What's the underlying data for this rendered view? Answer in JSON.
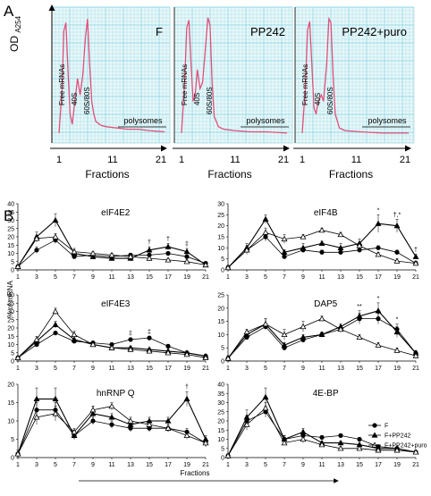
{
  "panel_labels": {
    "a": "A",
    "b": "B"
  },
  "colors": {
    "grid": "#7fd3e6",
    "trace": "#e0507a",
    "paper": "#eaf7f8",
    "ink": "#000000"
  },
  "profiles": {
    "ylabel_main": "OD",
    "ylabel_sub": "A254",
    "xlabel": "Fractions",
    "ticks": [
      "1",
      "11",
      "21"
    ],
    "annotations": [
      "Free mRNAs",
      "40S",
      "60S/80S",
      "polysomes"
    ],
    "panels": [
      {
        "title": "F",
        "trace": [
          [
            1,
            5
          ],
          [
            1.6,
            40
          ],
          [
            1.9,
            85
          ],
          [
            2.3,
            92
          ],
          [
            2.7,
            55
          ],
          [
            3.1,
            20
          ],
          [
            3.5,
            12
          ],
          [
            4,
            30
          ],
          [
            4.5,
            48
          ],
          [
            5,
            35
          ],
          [
            5.5,
            50
          ],
          [
            6,
            80
          ],
          [
            6.4,
            95
          ],
          [
            6.8,
            60
          ],
          [
            7.2,
            30
          ],
          [
            7.6,
            20
          ],
          [
            8,
            14
          ],
          [
            9,
            11
          ],
          [
            10,
            10
          ],
          [
            12,
            9
          ],
          [
            14,
            8
          ],
          [
            16,
            8
          ],
          [
            18,
            7
          ],
          [
            21,
            6
          ]
        ]
      },
      {
        "title": "PP242",
        "trace": [
          [
            1,
            5
          ],
          [
            1.6,
            45
          ],
          [
            2,
            88
          ],
          [
            2.4,
            94
          ],
          [
            2.8,
            60
          ],
          [
            3.2,
            30
          ],
          [
            3.6,
            35
          ],
          [
            4,
            55
          ],
          [
            4.5,
            40
          ],
          [
            5,
            45
          ],
          [
            5.6,
            75
          ],
          [
            6,
            96
          ],
          [
            6.4,
            90
          ],
          [
            6.8,
            45
          ],
          [
            7.2,
            18
          ],
          [
            8,
            10
          ],
          [
            9,
            8
          ],
          [
            11,
            7
          ],
          [
            14,
            6
          ],
          [
            17,
            6
          ],
          [
            21,
            5
          ]
        ]
      },
      {
        "title": "PP242+puro",
        "trace": [
          [
            1,
            5
          ],
          [
            1.6,
            42
          ],
          [
            2,
            86
          ],
          [
            2.4,
            93
          ],
          [
            2.8,
            60
          ],
          [
            3.2,
            25
          ],
          [
            3.6,
            20
          ],
          [
            4,
            30
          ],
          [
            4.6,
            35
          ],
          [
            5,
            30
          ],
          [
            5.6,
            60
          ],
          [
            6,
            95
          ],
          [
            6.4,
            92
          ],
          [
            6.8,
            50
          ],
          [
            7.2,
            20
          ],
          [
            8,
            9
          ],
          [
            9,
            7
          ],
          [
            12,
            6
          ],
          [
            16,
            5
          ],
          [
            21,
            5
          ]
        ]
      }
    ]
  },
  "chart_data": [
    {
      "type": "line",
      "title": "eIF4E2",
      "x": [
        1,
        3,
        5,
        7,
        9,
        11,
        13,
        15,
        17,
        19,
        21
      ],
      "ylim": [
        0,
        40
      ],
      "yticks": [
        0,
        5,
        10,
        15,
        20,
        25,
        30,
        35,
        40
      ],
      "annotations": [
        {
          "x": 15,
          "text": "†"
        },
        {
          "x": 17,
          "text": "†"
        },
        {
          "x": 19,
          "text": "‡"
        }
      ],
      "series": [
        {
          "name": "F",
          "values": [
            2,
            12,
            18,
            8,
            9,
            8,
            9,
            9,
            10,
            8,
            4
          ],
          "errors": [
            1,
            2,
            2,
            1,
            1,
            1,
            1,
            1,
            1,
            1,
            1
          ]
        },
        {
          "name": "F+PP242",
          "values": [
            2,
            20,
            30,
            10,
            8,
            7,
            7,
            12,
            14,
            11,
            3
          ],
          "errors": [
            1,
            3,
            4,
            2,
            1,
            1,
            1,
            2,
            2,
            2,
            1
          ]
        },
        {
          "name": "F+PP242+puro",
          "values": [
            2,
            19,
            20,
            11,
            10,
            9,
            8,
            7,
            6,
            5,
            3
          ],
          "errors": [
            1,
            2,
            2,
            2,
            1,
            1,
            1,
            1,
            1,
            1,
            1
          ]
        }
      ]
    },
    {
      "type": "line",
      "title": "eIF4B",
      "x": [
        1,
        3,
        5,
        7,
        9,
        11,
        13,
        15,
        17,
        19,
        21
      ],
      "ylim": [
        0,
        30
      ],
      "yticks": [
        0,
        5,
        10,
        15,
        20,
        25,
        30
      ],
      "annotations": [
        {
          "x": 17,
          "text": "*"
        },
        {
          "x": 19,
          "text": "†,*"
        },
        {
          "x": 21,
          "text": "†"
        }
      ],
      "series": [
        {
          "name": "F",
          "values": [
            1,
            9,
            15,
            6,
            9,
            8,
            8,
            9,
            10,
            8,
            3
          ],
          "errors": [
            1,
            1,
            2,
            1,
            1,
            1,
            1,
            1,
            1,
            1,
            1
          ]
        },
        {
          "name": "F+PP242",
          "values": [
            1,
            10,
            23,
            8,
            10,
            12,
            10,
            12,
            21,
            20,
            6
          ],
          "errors": [
            1,
            2,
            2,
            1,
            2,
            1,
            2,
            2,
            4,
            3,
            1
          ]
        },
        {
          "name": "F+PP242+puro",
          "values": [
            1,
            9,
            17,
            14,
            15,
            18,
            16,
            11,
            7,
            4,
            3
          ],
          "errors": [
            1,
            2,
            2,
            2,
            1,
            1,
            1,
            1,
            1,
            1,
            1
          ]
        }
      ]
    },
    {
      "type": "line",
      "title": "eIF4E3",
      "x": [
        1,
        3,
        5,
        7,
        9,
        11,
        13,
        15,
        17,
        19,
        21
      ],
      "ylim": [
        0,
        40
      ],
      "yticks": [
        0,
        5,
        10,
        15,
        20,
        25,
        30,
        35,
        40
      ],
      "annotations": [
        {
          "x": 13,
          "text": "‡"
        },
        {
          "x": 15,
          "text": "‡"
        }
      ],
      "series": [
        {
          "name": "F",
          "values": [
            2,
            10,
            17,
            12,
            11,
            10,
            13,
            14,
            9,
            5,
            3
          ],
          "errors": [
            1,
            1,
            1,
            1,
            1,
            1,
            1,
            1,
            1,
            1,
            1
          ]
        },
        {
          "name": "F+PP242",
          "values": [
            2,
            12,
            22,
            13,
            10,
            8,
            8,
            7,
            6,
            5,
            3
          ],
          "errors": [
            1,
            1,
            2,
            1,
            1,
            1,
            1,
            1,
            1,
            1,
            1
          ]
        },
        {
          "name": "F+PP242+puro",
          "values": [
            2,
            13,
            30,
            16,
            10,
            8,
            7,
            6,
            5,
            4,
            2
          ],
          "errors": [
            1,
            2,
            2,
            2,
            1,
            1,
            1,
            1,
            1,
            1,
            1
          ]
        }
      ]
    },
    {
      "type": "line",
      "title": "DAP5",
      "x": [
        1,
        3,
        5,
        7,
        9,
        11,
        13,
        15,
        17,
        19,
        21
      ],
      "ylim": [
        0,
        25
      ],
      "yticks": [
        0,
        5,
        10,
        15,
        20,
        25
      ],
      "annotations": [
        {
          "x": 15,
          "text": "**"
        },
        {
          "x": 17,
          "text": "*"
        },
        {
          "x": 19,
          "text": "*"
        }
      ],
      "series": [
        {
          "name": "F",
          "values": [
            1,
            9,
            13,
            5,
            8,
            10,
            12,
            16,
            16,
            12,
            3
          ],
          "errors": [
            1,
            1,
            1,
            1,
            1,
            1,
            1,
            2,
            2,
            2,
            1
          ]
        },
        {
          "name": "F+PP242",
          "values": [
            1,
            10,
            14,
            6,
            9,
            10,
            13,
            17,
            19,
            11,
            3
          ],
          "errors": [
            1,
            1,
            2,
            1,
            1,
            1,
            1,
            2,
            3,
            2,
            1
          ]
        },
        {
          "name": "F+PP242+puro",
          "values": [
            1,
            11,
            14,
            10,
            13,
            16,
            12,
            9,
            6,
            4,
            2
          ],
          "errors": [
            1,
            1,
            2,
            2,
            2,
            1,
            1,
            1,
            1,
            1,
            1
          ]
        }
      ]
    },
    {
      "type": "line",
      "title": "hnRNP Q",
      "x": [
        1,
        3,
        5,
        7,
        9,
        11,
        13,
        15,
        17,
        19,
        21
      ],
      "ylim": [
        0,
        20
      ],
      "yticks": [
        0,
        5,
        10,
        15,
        20
      ],
      "annotations": [
        {
          "x": 19,
          "text": "†"
        }
      ],
      "series": [
        {
          "name": "F",
          "values": [
            1,
            13,
            13,
            6,
            10,
            9,
            8,
            8,
            8,
            7,
            4
          ],
          "errors": [
            1,
            2,
            2,
            1,
            1,
            1,
            1,
            1,
            1,
            1,
            1
          ]
        },
        {
          "name": "F+PP242",
          "values": [
            1,
            16,
            16,
            6,
            12,
            11,
            9,
            10,
            10,
            16,
            5
          ],
          "errors": [
            1,
            3,
            3,
            1,
            2,
            1,
            1,
            1,
            1,
            2,
            1
          ]
        },
        {
          "name": "F+PP242+puro",
          "values": [
            1,
            11,
            12,
            7,
            13,
            14,
            10,
            9,
            8,
            6,
            4
          ],
          "errors": [
            1,
            2,
            2,
            1,
            1,
            1,
            1,
            1,
            1,
            1,
            1
          ]
        }
      ]
    },
    {
      "type": "line",
      "title": "4E-BP",
      "x": [
        1,
        3,
        5,
        7,
        9,
        11,
        13,
        15,
        17,
        19,
        21
      ],
      "ylim": [
        0,
        40
      ],
      "yticks": [
        0,
        5,
        10,
        15,
        20,
        25,
        30,
        35,
        40
      ],
      "annotations": [],
      "series": [
        {
          "name": "F",
          "values": [
            1,
            20,
            25,
            10,
            12,
            11,
            12,
            10,
            6,
            5,
            3
          ],
          "errors": [
            1,
            3,
            3,
            2,
            2,
            1,
            1,
            1,
            1,
            1,
            1
          ]
        },
        {
          "name": "F+PP242",
          "values": [
            1,
            22,
            33,
            10,
            14,
            8,
            8,
            7,
            5,
            5,
            3
          ],
          "errors": [
            1,
            4,
            5,
            2,
            2,
            1,
            1,
            1,
            1,
            1,
            1
          ]
        },
        {
          "name": "F+PP242+puro",
          "values": [
            1,
            18,
            27,
            8,
            10,
            7,
            5,
            5,
            4,
            4,
            3
          ],
          "errors": [
            1,
            3,
            3,
            1,
            2,
            1,
            1,
            1,
            1,
            1,
            1
          ]
        }
      ]
    }
  ],
  "shared": {
    "ylabel": "% of mRNA",
    "xlabel": "Fractions",
    "legend": [
      "F",
      "F+PP242",
      "F+PP242+puro"
    ]
  }
}
